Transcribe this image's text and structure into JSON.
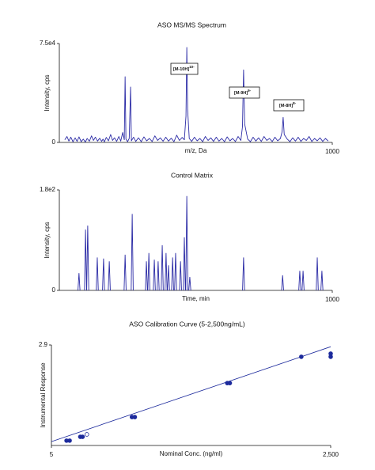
{
  "chart_data": [
    {
      "type": "line",
      "title": "ASO MS/MS Spectrum",
      "ylabel": "Intensity, cps",
      "xlabel": "m/z, Da",
      "color": "#2b2ba6",
      "xlim": [
        0,
        1000
      ],
      "xticks": [
        1000
      ],
      "ylim": [
        0,
        75000
      ],
      "yticks": [
        0,
        {
          "value": 75000,
          "label": "7.5e4"
        }
      ],
      "x": [
        20,
        28,
        35,
        42,
        50,
        58,
        65,
        72,
        80,
        88,
        95,
        102,
        110,
        118,
        125,
        132,
        140,
        148,
        155,
        160,
        165,
        172,
        180,
        188,
        195,
        202,
        210,
        218,
        225,
        232,
        238,
        241,
        244,
        250,
        256,
        261,
        264,
        272,
        280,
        290,
        300,
        310,
        320,
        330,
        340,
        350,
        360,
        370,
        380,
        390,
        400,
        410,
        420,
        430,
        440,
        450,
        458,
        464,
        467,
        470,
        476,
        485,
        495,
        505,
        515,
        525,
        535,
        545,
        555,
        565,
        575,
        585,
        595,
        605,
        615,
        625,
        635,
        645,
        655,
        665,
        671,
        675,
        679,
        690,
        700,
        710,
        720,
        730,
        740,
        750,
        760,
        770,
        780,
        790,
        800,
        810,
        816,
        820,
        824,
        835,
        845,
        855,
        865,
        875,
        885,
        895,
        905,
        915,
        925,
        935,
        945,
        955,
        965,
        975,
        985
      ],
      "values": [
        2000,
        4500,
        1000,
        4000,
        500,
        3500,
        800,
        4200,
        600,
        2500,
        300,
        3000,
        900,
        5000,
        1500,
        4000,
        1000,
        3200,
        800,
        2500,
        500,
        3800,
        1200,
        6000,
        1500,
        3500,
        800,
        4500,
        1000,
        7500,
        2000,
        49800,
        2500,
        600,
        3000,
        42000,
        1200,
        4000,
        800,
        3500,
        600,
        4200,
        1200,
        3000,
        700,
        5000,
        1500,
        3500,
        900,
        4000,
        1000,
        3200,
        600,
        5500,
        1500,
        3800,
        2000,
        20000,
        72000,
        25000,
        3000,
        800,
        4000,
        1200,
        3000,
        600,
        4500,
        1500,
        3500,
        800,
        4000,
        1000,
        3000,
        600,
        4200,
        1200,
        3000,
        700,
        4500,
        1500,
        12000,
        55000,
        14000,
        2500,
        600,
        4000,
        1000,
        3500,
        800,
        4500,
        1500,
        3000,
        700,
        4000,
        1200,
        3000,
        8000,
        19000,
        6000,
        2500,
        600,
        3500,
        1000,
        4000,
        800,
        3000,
        1500,
        4500,
        700,
        3000,
        1200,
        3500,
        800,
        3000,
        1000
      ],
      "annotations": [
        {
          "text": "[M-10H]",
          "sup": "10-"
        },
        {
          "text": "[M-9H]",
          "sup": "9-"
        },
        {
          "text": "[M-8H]",
          "sup": "8-"
        }
      ]
    },
    {
      "type": "stem",
      "title": "Control Matrix",
      "ylabel": "Intensity, cps",
      "xlabel": "Time, min",
      "color": "#2b2ba6",
      "xlim": [
        0,
        1000
      ],
      "xticks": [
        1000
      ],
      "ylim": [
        0,
        180
      ],
      "yticks": [
        0,
        {
          "value": 180,
          "label": "1.8e2"
        }
      ],
      "x": [
        72,
        96,
        104,
        139,
        162,
        183,
        241,
        267,
        319,
        328,
        348,
        362,
        377,
        391,
        400,
        415,
        426,
        444,
        458,
        467,
        478,
        675,
        818,
        881,
        893,
        945,
        962
      ],
      "values": [
        31,
        109,
        116,
        59,
        57,
        52,
        64,
        137,
        52,
        67,
        55,
        52,
        81,
        67,
        45,
        59,
        67,
        52,
        95,
        169,
        24,
        59,
        27,
        35,
        35,
        59,
        35
      ]
    },
    {
      "type": "scatter",
      "title": "ASO Calibration Curve (5-2,500ng/mL)",
      "ylabel": "Instrumental Response",
      "xlabel": "Nominal Conc. (ng/ml)",
      "color": "#1c2a9c",
      "xscale": "log",
      "xlim": [
        5,
        2500
      ],
      "xticks": [
        5,
        {
          "value": 2500,
          "label": "2,500"
        }
      ],
      "ylim": [
        0,
        2.9
      ],
      "yticks": [
        2.9
      ],
      "series": [
        {
          "marker": "filled",
          "x": [
            7,
            7.5,
            9.5,
            10,
            30,
            32,
            250,
            265,
            1300,
            2500,
            2500
          ],
          "values": [
            0.14,
            0.14,
            0.25,
            0.25,
            0.82,
            0.82,
            1.8,
            1.8,
            2.56,
            2.65,
            2.56
          ]
        },
        {
          "marker": "open",
          "x": [
            11
          ],
          "values": [
            0.32
          ]
        }
      ],
      "fit": {
        "x": [
          5,
          2500
        ],
        "values": [
          0.11,
          2.85
        ]
      }
    }
  ]
}
